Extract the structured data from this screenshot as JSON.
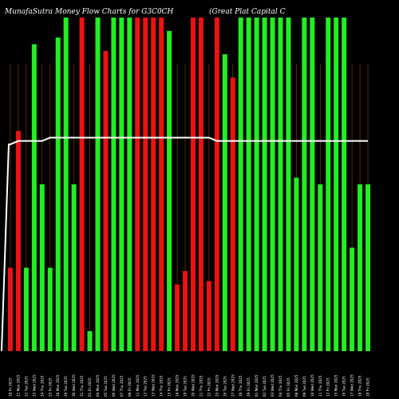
{
  "chart_data": {
    "type": "bar",
    "title_left": "MunafaSutra  Money Flow  Charts for G3C0CH",
    "title_right": "(Great  Plat  Capital  C",
    "colors": {
      "background": "#000000",
      "up": "#22ee22",
      "down": "#ee1111",
      "grid": "#8a4a00",
      "line": "#ffffff"
    },
    "ylim": [
      0,
      100
    ],
    "categories": [
      "18 Fri 2025",
      "21 Mon 2025",
      "22 Tue 2025",
      "23 Wed 2025",
      "24 Thu 2025",
      "25 Fri 2025",
      "28 Mon 2025",
      "29 Tue 2025",
      "30 Wed 2025",
      "31 Thu 2025",
      "01 Fri 2025",
      "04 Mon 2025",
      "05 Tue 2025",
      "06 Wed 2025",
      "07 Thu 2025",
      "08 Fri 2025",
      "11 Mon 2025",
      "12 Tue 2025",
      "13 Wed 2025",
      "14 Thu 2025",
      "15 Fri 2025",
      "18 Mon 2025",
      "19 Tue 2025",
      "20 Wed 2025",
      "21 Thu 2025",
      "22 Fri 2025",
      "25 Mon 2025",
      "26 Tue 2025",
      "27 Wed 2025",
      "28 Thu 2025",
      "29 Fri 2025",
      "01 Mon 2025",
      "02 Tue 2025",
      "03 Wed 2025",
      "04 Thu 2025",
      "05 Fri 2025",
      "08 Mon 2025",
      "09 Tue 2025",
      "10 Wed 2025",
      "11 Thu 2025",
      "12 Fri 2025",
      "15 Mon 2025",
      "16 Tue 2025",
      "17 Wed 2025",
      "18 Thu 2025",
      "19 Fri 2025"
    ],
    "values": [
      25,
      66,
      25,
      92,
      50,
      25,
      94,
      100,
      50,
      100,
      6,
      100,
      90,
      100,
      100,
      100,
      100,
      100,
      100,
      100,
      96,
      20,
      24,
      100,
      100,
      21,
      100,
      89,
      82,
      100,
      100,
      100,
      100,
      100,
      100,
      100,
      52,
      100,
      100,
      50,
      100,
      100,
      100,
      31,
      50,
      50
    ],
    "directions": [
      "down",
      "down",
      "up",
      "up",
      "up",
      "up",
      "up",
      "up",
      "up",
      "down",
      "up",
      "up",
      "down",
      "up",
      "up",
      "up",
      "down",
      "down",
      "down",
      "down",
      "up",
      "down",
      "down",
      "down",
      "down",
      "down",
      "down",
      "up",
      "down",
      "up",
      "up",
      "up",
      "up",
      "up",
      "up",
      "up",
      "up",
      "up",
      "up",
      "up",
      "up",
      "up",
      "up",
      "up",
      "up",
      "up"
    ],
    "line_series": [
      62,
      63,
      63,
      63,
      63,
      64,
      64,
      64,
      64,
      64,
      64,
      64,
      64,
      64,
      64,
      64,
      64,
      64,
      64,
      64,
      64,
      64,
      64,
      64,
      64,
      64,
      63,
      63,
      63,
      63,
      63,
      63,
      63,
      63,
      63,
      63,
      63,
      63,
      63,
      63,
      63,
      63,
      63,
      63,
      63,
      63
    ]
  }
}
